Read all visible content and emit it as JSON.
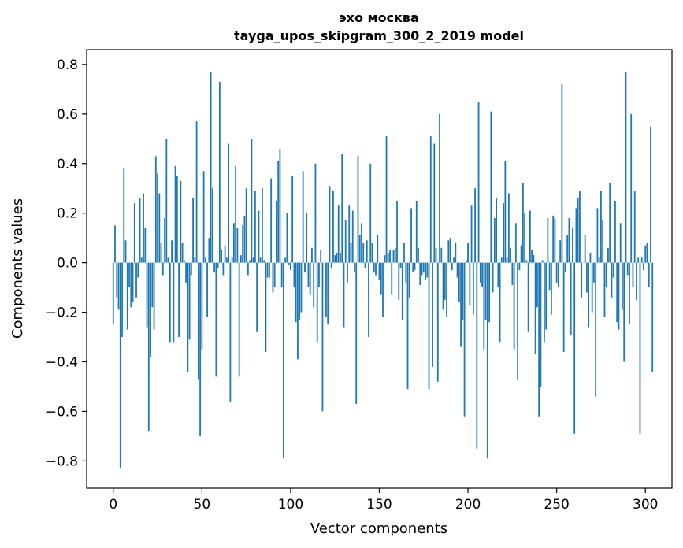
{
  "chart_data": {
    "type": "bar",
    "title": "эхо москва",
    "subtitle": "tayga_upos_skipgram_300_2_2019 model",
    "xlabel": "Vector components",
    "ylabel": "Components values",
    "xlim": [
      -15,
      315
    ],
    "ylim": [
      -0.91,
      0.86
    ],
    "xticks": [
      0,
      50,
      100,
      150,
      200,
      250,
      300
    ],
    "xtick_labels": [
      "0",
      "50",
      "100",
      "150",
      "200",
      "250",
      "300"
    ],
    "yticks": [
      -0.8,
      -0.6,
      -0.4,
      -0.2,
      0.0,
      0.2,
      0.4,
      0.6,
      0.8
    ],
    "ytick_labels": [
      "−0.8",
      "−0.6",
      "−0.4",
      "−0.2",
      "0.0",
      "0.2",
      "0.4",
      "0.6",
      "0.8"
    ],
    "grid": false,
    "bar_color": "#1f77b4",
    "values": [
      -0.25,
      0.15,
      -0.14,
      -0.19,
      -0.83,
      -0.3,
      0.38,
      0.09,
      -0.27,
      -0.1,
      -0.18,
      -0.16,
      0.24,
      -0.14,
      -0.06,
      0.26,
      0.02,
      0.28,
      0.14,
      -0.26,
      -0.68,
      -0.38,
      -0.18,
      -0.27,
      0.43,
      0.36,
      0.28,
      0.08,
      -0.05,
      0.18,
      0.5,
      0.02,
      -0.32,
      0.09,
      -0.32,
      0.39,
      0.35,
      -0.3,
      0.33,
      0.08,
      0.01,
      -0.08,
      -0.44,
      -0.31,
      -0.05,
      0.26,
      0.02,
      0.57,
      -0.47,
      -0.7,
      -0.35,
      0.37,
      0.02,
      -0.22,
      0.1,
      0.77,
      0.3,
      -0.04,
      -0.46,
      -0.02,
      0.73,
      0.05,
      -0.05,
      0.07,
      0.02,
      0.48,
      -0.56,
      0.02,
      0.16,
      0.39,
      0.14,
      -0.46,
      0.03,
      0.15,
      0.19,
      0.3,
      -0.05,
      0.01,
      0.5,
      0.02,
      0.29,
      -0.28,
      0.21,
      0.02,
      0.3,
      0.01,
      -0.36,
      -0.06,
      -0.06,
      0.34,
      -0.12,
      -0.1,
      0.25,
      0.41,
      0.46,
      -0.1,
      -0.79,
      0.02,
      0.2,
      -0.01,
      -0.03,
      0.35,
      -0.1,
      -0.24,
      -0.39,
      -0.23,
      -0.2,
      0.37,
      -0.04,
      0.2,
      -0.1,
      -0.13,
      0.06,
      -0.18,
      0.4,
      -0.32,
      -0.1,
      0.05,
      -0.6,
      0.0,
      -0.22,
      -0.25,
      0.31,
      -0.02,
      0.29,
      0.03,
      0.04,
      0.23,
      0.04,
      0.44,
      -0.26,
      0.17,
      -0.08,
      0.23,
      0.08,
      0.21,
      -0.04,
      -0.57,
      0.43,
      0.11,
      0.16,
      0.08,
      -0.02,
      0.09,
      -0.3,
      0.4,
      0.08,
      -0.04,
      -0.05,
      0.11,
      -0.07,
      -0.13,
      -0.22,
      0.03,
      0.51,
      0.04,
      0.05,
      -0.13,
      0.05,
      0.06,
      0.25,
      -0.15,
      -0.02,
      -0.23,
      0.08,
      -0.08,
      -0.51,
      -0.14,
      0.22,
      -0.04,
      -0.03,
      0.25,
      0.06,
      -0.09,
      -0.05,
      -0.04,
      -0.07,
      -0.06,
      -0.51,
      0.51,
      -0.42,
      0.48,
      0.06,
      -0.48,
      0.6,
      0.06,
      -0.19,
      -0.15,
      -0.22,
      0.09,
      0.1,
      -0.03,
      0.02,
      0.08,
      -0.06,
      -0.16,
      -0.34,
      -0.23,
      -0.62,
      0.01,
      0.08,
      -0.17,
      0.23,
      -0.21,
      0.3,
      -0.75,
      0.65,
      -0.08,
      -0.1,
      -0.35,
      -0.23,
      -0.79,
      -0.24,
      0.61,
      -0.12,
      0.18,
      0.26,
      -0.1,
      -0.32,
      0.02,
      0.24,
      0.41,
      0.02,
      0.28,
      0.06,
      -0.09,
      -0.35,
      0.16,
      -0.47,
      -0.03,
      0.07,
      0.32,
      0.2,
      0.01,
      -0.28,
      0.21,
      0.05,
      0.03,
      -0.37,
      -0.18,
      -0.62,
      -0.5,
      0.01,
      -0.32,
      -0.27,
      0.18,
      -0.11,
      -0.21,
      0.19,
      0.18,
      -0.08,
      -0.1,
      0.09,
      0.72,
      -0.36,
      -0.04,
      0.11,
      0.18,
      -0.29,
      0.14,
      -0.69,
      0.22,
      0.26,
      0.29,
      -0.14,
      0.0,
      0.11,
      -0.12,
      -0.26,
      0.04,
      -0.2,
      -0.08,
      -0.54,
      0.22,
      0.02,
      0.29,
      0.17,
      -0.22,
      -0.1,
      0.06,
      0.32,
      -0.14,
      -0.06,
      0.25,
      -0.24,
      -0.27,
      0.16,
      -0.19,
      -0.4,
      0.77,
      -0.05,
      -0.25,
      0.6,
      -0.1,
      0.29,
      -0.15,
      0.02,
      -0.69,
      0.02,
      -0.03,
      0.07,
      0.08,
      -0.1,
      0.55,
      -0.44
    ]
  }
}
